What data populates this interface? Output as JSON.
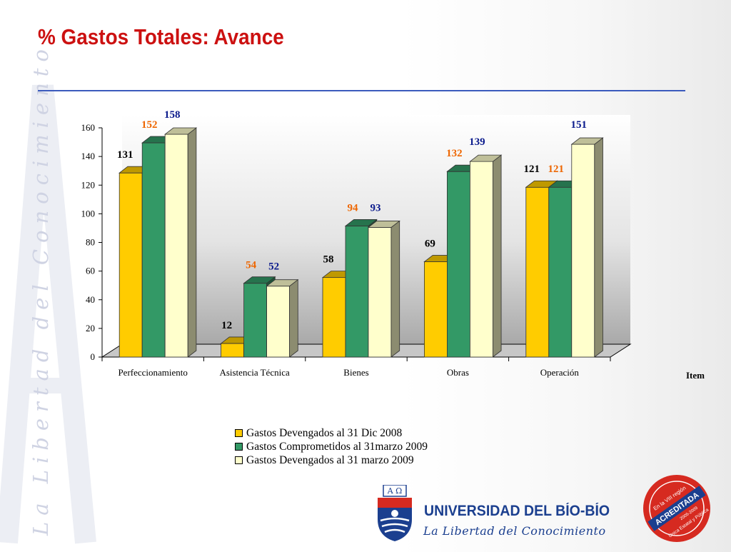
{
  "page": {
    "title": "% Gastos Totales:  Avance",
    "side_text": "La Libertad del Conocimiento"
  },
  "chart_data": {
    "type": "bar",
    "title": "",
    "xlabel": "Item",
    "ylabel": "",
    "ylim": [
      0,
      160
    ],
    "yticks": [
      0,
      20,
      40,
      60,
      80,
      100,
      120,
      140,
      160
    ],
    "categories": [
      "Perfeccionamiento",
      "Asistencia Técnica",
      "Bienes",
      "Obras",
      "Operación"
    ],
    "series": [
      {
        "name": "Gastos Devengados al 31 Dic 2008",
        "values": [
          131,
          12,
          58,
          69,
          121
        ],
        "color": "#ffcc00",
        "label_color": "#000000"
      },
      {
        "name": "Gastos Comprometidos al 31marzo 2009",
        "values": [
          152,
          54,
          94,
          132,
          121
        ],
        "color": "#339966",
        "label_color": "#ee6600"
      },
      {
        "name": "Gastos Devengados al 31 marzo 2009",
        "values": [
          158,
          52,
          93,
          139,
          151
        ],
        "color": "#ffffcc",
        "label_color": "#0a1a8c"
      }
    ],
    "grid": false,
    "legend_position": "bottom",
    "three_d": true
  },
  "footer": {
    "university": "UNIVERSIDAD DEL BÍO-BÍO",
    "tagline": "La Libertad del Conocimiento",
    "crest_letters": "A Ω",
    "seal_lines": [
      "En la VIII región",
      "ACREDITADA",
      "2005-2009",
      "Única Estatal y Pública"
    ]
  },
  "colors": {
    "title": "#cc1111",
    "rule": "#3b5bbd",
    "brand_blue": "#1b3f8f",
    "seal_red": "#d62a20"
  }
}
